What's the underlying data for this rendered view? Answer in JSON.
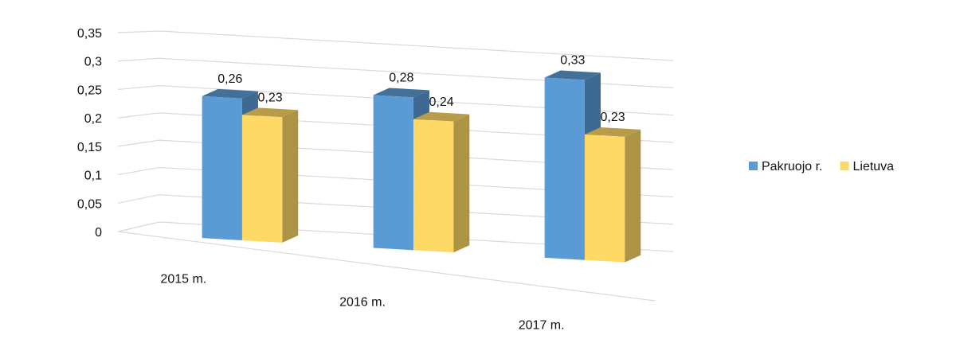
{
  "chart_data": {
    "type": "bar",
    "categories": [
      "2015 m.",
      "2016 m.",
      "2017 m."
    ],
    "series": [
      {
        "name": "Pakruojo r.",
        "values": [
          0.26,
          0.28,
          0.33
        ],
        "labels": [
          "0,26",
          "0,28",
          "0,33"
        ],
        "color": "#5b9bd5"
      },
      {
        "name": "Lietuva",
        "values": [
          0.23,
          0.24,
          0.23
        ],
        "labels": [
          "0,23",
          "0,24",
          "0,23"
        ],
        "color": "#ffd966"
      }
    ],
    "ylim": [
      0,
      0.35
    ],
    "yticks": [
      "0",
      "0,05",
      "0,1",
      "0,15",
      "0,2",
      "0,25",
      "0,3",
      "0,35"
    ],
    "grid": true,
    "legend_position": "right",
    "style": "3d-perspective"
  }
}
